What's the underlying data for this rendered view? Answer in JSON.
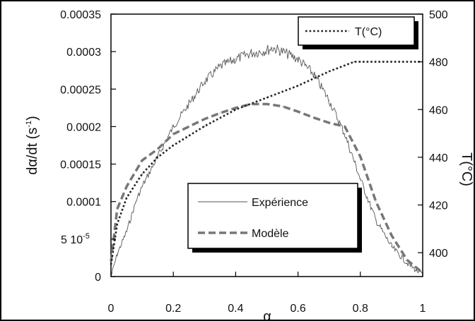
{
  "chart_data": {
    "type": "line",
    "xlabel": "α",
    "ylabel_left": {
      "base": "dα/dt (s",
      "sup": "-1",
      "close": ")"
    },
    "ylabel_right": "T(°C)",
    "xlim": [
      0,
      1
    ],
    "ylim_left": [
      0,
      0.00035
    ],
    "ylim_right": [
      390,
      500
    ],
    "x_ticks": [
      {
        "value": 0,
        "label": "0"
      },
      {
        "value": 0.2,
        "label": "0.2"
      },
      {
        "value": 0.4,
        "label": "0.4"
      },
      {
        "value": 0.6,
        "label": "0.6"
      },
      {
        "value": 0.8,
        "label": "0.8"
      },
      {
        "value": 1,
        "label": "1"
      }
    ],
    "y_left_ticks": [
      {
        "value": 0,
        "label": "0"
      },
      {
        "value": 5e-05,
        "label": "5 10",
        "sup": "-5"
      },
      {
        "value": 0.0001,
        "label": "0.0001"
      },
      {
        "value": 0.00015,
        "label": "0.00015"
      },
      {
        "value": 0.0002,
        "label": "0.0002"
      },
      {
        "value": 0.00025,
        "label": "0.00025"
      },
      {
        "value": 0.0003,
        "label": "0.0003"
      },
      {
        "value": 0.00035,
        "label": "0.00035"
      }
    ],
    "y_right_ticks": [
      {
        "value": 400,
        "label": "400"
      },
      {
        "value": 420,
        "label": "420"
      },
      {
        "value": 440,
        "label": "440"
      },
      {
        "value": 460,
        "label": "460"
      },
      {
        "value": 480,
        "label": "480"
      },
      {
        "value": 500,
        "label": "500"
      }
    ],
    "series": [
      {
        "name": "Expérience",
        "axis": "left",
        "style": "noisy-thin",
        "color": "#555555",
        "x": [
          0,
          0.02,
          0.05,
          0.08,
          0.1,
          0.15,
          0.2,
          0.25,
          0.3,
          0.35,
          0.4,
          0.45,
          0.5,
          0.52,
          0.55,
          0.6,
          0.65,
          0.7,
          0.75,
          0.8,
          0.85,
          0.9,
          0.95,
          0.98,
          1.0
        ],
        "y": [
          0.0,
          3e-05,
          6e-05,
          0.0001,
          0.00012,
          0.00016,
          0.0002,
          0.00023,
          0.00026,
          0.00028,
          0.00029,
          0.000298,
          0.000302,
          0.000305,
          0.0003,
          0.00029,
          0.00027,
          0.000235,
          0.00019,
          0.00013,
          7.5e-05,
          4e-05,
          1.8e-05,
          8e-06,
          3e-06
        ]
      },
      {
        "name": "Modèle",
        "axis": "left",
        "style": "dashed-thick",
        "color": "#777777",
        "x": [
          0,
          0.02,
          0.05,
          0.1,
          0.15,
          0.2,
          0.25,
          0.3,
          0.35,
          0.4,
          0.45,
          0.5,
          0.55,
          0.6,
          0.65,
          0.7,
          0.75,
          0.8,
          0.85,
          0.9,
          0.95,
          1.0
        ],
        "y": [
          2e-05,
          9e-05,
          0.00012,
          0.000155,
          0.00017,
          0.00019,
          0.0002,
          0.00021,
          0.000218,
          0.000225,
          0.00023,
          0.00023,
          0.000227,
          0.00022,
          0.000212,
          0.000205,
          0.0002,
          0.00016,
          0.0001,
          5.5e-05,
          2.2e-05,
          5e-06
        ]
      },
      {
        "name": "T(°C)",
        "axis": "right",
        "style": "dotted",
        "color": "#222222",
        "x": [
          0,
          0.02,
          0.05,
          0.1,
          0.15,
          0.2,
          0.3,
          0.4,
          0.5,
          0.6,
          0.7,
          0.78,
          0.8,
          0.9,
          1.0
        ],
        "y": [
          395,
          412,
          423,
          433,
          440,
          445,
          453,
          460,
          465,
          470,
          476,
          480,
          480,
          480,
          480
        ]
      }
    ],
    "legends": [
      {
        "entries": [
          "T(°C)"
        ],
        "placement": "top-right"
      },
      {
        "entries": [
          "Expérience",
          "Modèle"
        ],
        "placement": "center"
      }
    ],
    "grid": false
  }
}
